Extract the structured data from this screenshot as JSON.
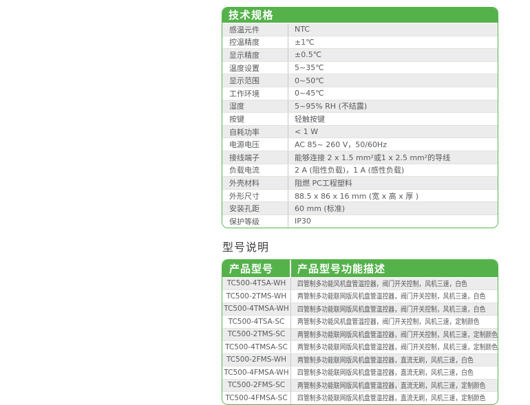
{
  "colors": {
    "accent_green": "#55b24b",
    "row_alt_gray": "#ececec",
    "text_gray": "#58595b"
  },
  "spec_table": {
    "title": "技术规格",
    "rows": [
      {
        "label": "感温元件",
        "value": "NTC"
      },
      {
        "label": "控温精度",
        "value": "±1℃"
      },
      {
        "label": "显示精度",
        "value": "±0.5℃"
      },
      {
        "label": "温度设置",
        "value": "5~35℃"
      },
      {
        "label": "显示范围",
        "value": "0~50℃"
      },
      {
        "label": "工作环境",
        "value": "0~45℃"
      },
      {
        "label": "湿度",
        "value": "5~95% RH (不结露)"
      },
      {
        "label": "按键",
        "value": "轻触按键"
      },
      {
        "label": "自耗功率",
        "value": "< 1 W"
      },
      {
        "label": "电源电压",
        "value": "AC 85~ 260 V，50/60Hz"
      },
      {
        "label": "接线端子",
        "value": "能够连接 2 x 1.5 mm²或1 x 2.5 mm²的导线"
      },
      {
        "label": "负载电流",
        "value": "2 A (阻性负载)，1 A (感性负载)"
      },
      {
        "label": "外壳材料",
        "value": "阻燃 PC工程塑料"
      },
      {
        "label": "外形尺寸",
        "value": "88.5 x 86 x 16 mm (宽 x 高 x 厚 )"
      },
      {
        "label": "安装孔距",
        "value": "60 mm (标准)"
      },
      {
        "label": "保护等级",
        "value": "IP30"
      }
    ]
  },
  "model_section": {
    "title": "型号说明",
    "table": {
      "headers": [
        "产品型号",
        "产品型号功能描述"
      ],
      "rows": [
        [
          "TC500-4TSA-WH",
          "四管制多功能风机盘管温控器，阀门开关控制，风机三速，白色"
        ],
        [
          "TC500-2TMS-WH",
          "两管制多功能联网版风机盘管温控器，阀门开关控制，风机三速，白色"
        ],
        [
          "TC500-4TMSA-WH",
          "四管制多功能联网版风机盘管温控器，阀门开关控制，风机三速，白色"
        ],
        [
          "TC500-4TSA-SC",
          "两管制多功能风机盘管温控器，阀门开关控制，风机三速，定制颜色"
        ],
        [
          "TC500-2TMS-SC",
          "两管制多功能联网版风机盘管温控器，阀门开关控制，风机三速，定制颜色"
        ],
        [
          "TC500-4TMSA-SC",
          "两管制多功能联网版风机盘管温控器，阀门开关控制，风机三速，定制颜色"
        ],
        [
          "TC500-2FMS-WH",
          "两管制多功能联网版风机盘管温控器，直流无刷，风机三速，白色"
        ],
        [
          "TC500-4FMSA-WH",
          "四管制多功能联网版风机盘管温控器，直流无刷，风机三速，白色"
        ],
        [
          "TC500-2FMS-SC",
          "两管制多功能联网版风机盘管温控器，直流无刷，风机三速，定制颜色"
        ],
        [
          "TC500-4FMSA-SC",
          "四管制多功能联网版风机盘管温控器，直流无刷，风机三速，定制颜色"
        ]
      ]
    }
  }
}
